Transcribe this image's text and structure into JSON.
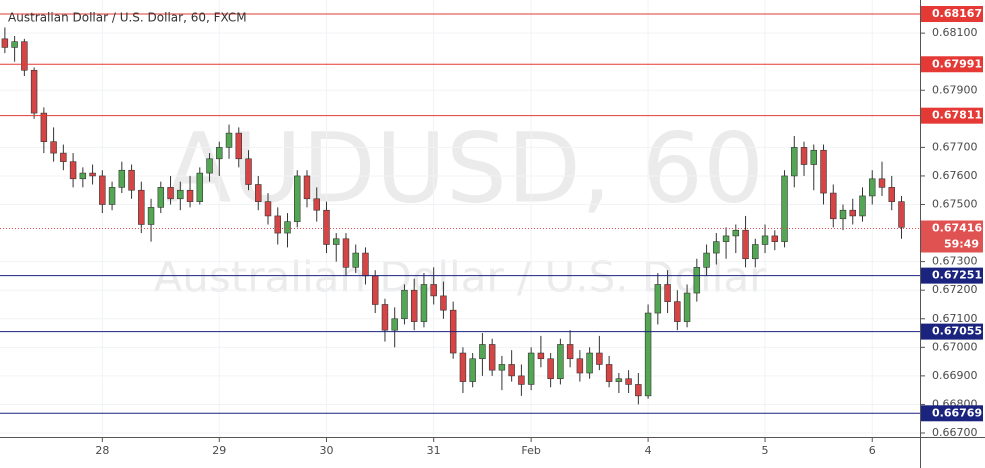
{
  "chart_data": {
    "type": "candlestick",
    "title": "Australian Dollar / U.S. Dollar, 60, FXCM",
    "watermark": {
      "symbol": "AUDUSD, 60",
      "description": "Australian Dollar / U.S. Dollar"
    },
    "up_color": "#53a653",
    "down_color": "#d64545",
    "grid": true,
    "ylim": [
      0.66686,
      0.68216
    ],
    "yticks": [
      {
        "value": 0.681,
        "label": "0.68100"
      },
      {
        "value": 0.679,
        "label": "0.67900"
      },
      {
        "value": 0.677,
        "label": "0.67700"
      },
      {
        "value": 0.676,
        "label": "0.67600"
      },
      {
        "value": 0.675,
        "label": "0.67500"
      },
      {
        "value": 0.673,
        "label": "0.67300"
      },
      {
        "value": 0.672,
        "label": "0.67200"
      },
      {
        "value": 0.671,
        "label": "0.67100"
      },
      {
        "value": 0.67,
        "label": "0.67000"
      },
      {
        "value": 0.669,
        "label": "0.66900"
      },
      {
        "value": 0.668,
        "label": "0.66800"
      },
      {
        "value": 0.667,
        "label": "0.66700"
      }
    ],
    "xlim": [
      -0.5,
      93.9
    ],
    "xticks": [
      {
        "value": 10,
        "label": "28"
      },
      {
        "value": 22,
        "label": "29"
      },
      {
        "value": 33,
        "label": "30"
      },
      {
        "value": 44,
        "label": "31"
      },
      {
        "value": 54,
        "label": "Feb"
      },
      {
        "value": 66,
        "label": "4"
      },
      {
        "value": 78,
        "label": "5"
      },
      {
        "value": 89,
        "label": "6"
      }
    ],
    "levels": [
      {
        "value": 0.68167,
        "color": "#e53935"
      },
      {
        "value": 0.67991,
        "color": "#e53935"
      },
      {
        "value": 0.67811,
        "color": "#e53935"
      },
      {
        "value": 0.67251,
        "color": "#1a237e"
      },
      {
        "value": 0.67055,
        "color": "#1a237e"
      },
      {
        "value": 0.66769,
        "color": "#1a237e"
      }
    ],
    "last_price": {
      "value": 0.67416,
      "countdown": "59:49",
      "color": "#e05252"
    },
    "candles": [
      [
        0.6808,
        0.6812,
        0.6803,
        0.6805
      ],
      [
        0.6805,
        0.6809,
        0.68,
        0.6807
      ],
      [
        0.6807,
        0.6808,
        0.6795,
        0.6797
      ],
      [
        0.6797,
        0.6798,
        0.678,
        0.6782
      ],
      [
        0.6782,
        0.6784,
        0.6768,
        0.6772
      ],
      [
        0.6772,
        0.6777,
        0.6765,
        0.6768
      ],
      [
        0.6768,
        0.6771,
        0.6762,
        0.6765
      ],
      [
        0.6765,
        0.6768,
        0.6756,
        0.6759
      ],
      [
        0.6759,
        0.6763,
        0.6756,
        0.6761
      ],
      [
        0.6761,
        0.6764,
        0.6757,
        0.676
      ],
      [
        0.676,
        0.6762,
        0.6747,
        0.675
      ],
      [
        0.675,
        0.6758,
        0.6748,
        0.6756
      ],
      [
        0.6756,
        0.6765,
        0.6754,
        0.6762
      ],
      [
        0.6762,
        0.6764,
        0.6752,
        0.6755
      ],
      [
        0.6755,
        0.6758,
        0.674,
        0.6743
      ],
      [
        0.6743,
        0.6752,
        0.6737,
        0.6749
      ],
      [
        0.6749,
        0.6758,
        0.6747,
        0.6756
      ],
      [
        0.6756,
        0.676,
        0.675,
        0.6752
      ],
      [
        0.6752,
        0.6758,
        0.6748,
        0.6755
      ],
      [
        0.6755,
        0.676,
        0.6749,
        0.6751
      ],
      [
        0.6751,
        0.6763,
        0.675,
        0.6761
      ],
      [
        0.6761,
        0.6768,
        0.6758,
        0.6766
      ],
      [
        0.6766,
        0.6772,
        0.676,
        0.677
      ],
      [
        0.677,
        0.6778,
        0.6766,
        0.6775
      ],
      [
        0.6775,
        0.6777,
        0.6763,
        0.6766
      ],
      [
        0.6766,
        0.6769,
        0.6755,
        0.6757
      ],
      [
        0.6757,
        0.676,
        0.6748,
        0.6751
      ],
      [
        0.6751,
        0.6754,
        0.6743,
        0.6746
      ],
      [
        0.6746,
        0.6749,
        0.6736,
        0.674
      ],
      [
        0.674,
        0.6747,
        0.6735,
        0.6744
      ],
      [
        0.6744,
        0.6762,
        0.6742,
        0.676
      ],
      [
        0.676,
        0.6762,
        0.6749,
        0.6752
      ],
      [
        0.6752,
        0.6756,
        0.6744,
        0.6748
      ],
      [
        0.6748,
        0.6751,
        0.6733,
        0.6736
      ],
      [
        0.6736,
        0.674,
        0.673,
        0.6738
      ],
      [
        0.6738,
        0.674,
        0.6725,
        0.6728
      ],
      [
        0.6728,
        0.6736,
        0.6726,
        0.6733
      ],
      [
        0.6733,
        0.6735,
        0.6722,
        0.6725
      ],
      [
        0.6725,
        0.6727,
        0.6712,
        0.6715
      ],
      [
        0.6715,
        0.6717,
        0.6702,
        0.6706
      ],
      [
        0.6706,
        0.6714,
        0.67,
        0.671
      ],
      [
        0.671,
        0.6722,
        0.6708,
        0.672
      ],
      [
        0.672,
        0.6724,
        0.6706,
        0.6709
      ],
      [
        0.6709,
        0.6726,
        0.6707,
        0.6722
      ],
      [
        0.6722,
        0.6728,
        0.6715,
        0.6718
      ],
      [
        0.6718,
        0.6723,
        0.671,
        0.6713
      ],
      [
        0.6713,
        0.6716,
        0.6696,
        0.6698
      ],
      [
        0.6698,
        0.67,
        0.6684,
        0.6688
      ],
      [
        0.6688,
        0.6698,
        0.6686,
        0.6696
      ],
      [
        0.6696,
        0.6705,
        0.669,
        0.6701
      ],
      [
        0.6701,
        0.6703,
        0.669,
        0.6692
      ],
      [
        0.6692,
        0.6697,
        0.6685,
        0.6694
      ],
      [
        0.6694,
        0.6699,
        0.6688,
        0.669
      ],
      [
        0.669,
        0.6694,
        0.6683,
        0.6687
      ],
      [
        0.6687,
        0.67,
        0.6685,
        0.6698
      ],
      [
        0.6698,
        0.6704,
        0.6693,
        0.6696
      ],
      [
        0.6696,
        0.6698,
        0.6686,
        0.6689
      ],
      [
        0.6689,
        0.6703,
        0.6687,
        0.6701
      ],
      [
        0.6701,
        0.6706,
        0.6693,
        0.6696
      ],
      [
        0.6696,
        0.6699,
        0.6688,
        0.6691
      ],
      [
        0.6691,
        0.67,
        0.6689,
        0.6698
      ],
      [
        0.6698,
        0.6704,
        0.6692,
        0.6694
      ],
      [
        0.6694,
        0.6697,
        0.6686,
        0.6688
      ],
      [
        0.6688,
        0.6691,
        0.6684,
        0.6689
      ],
      [
        0.6689,
        0.6692,
        0.6684,
        0.6687
      ],
      [
        0.6687,
        0.6691,
        0.668,
        0.6683
      ],
      [
        0.6683,
        0.6715,
        0.6682,
        0.6712
      ],
      [
        0.6712,
        0.6726,
        0.6708,
        0.6722
      ],
      [
        0.6722,
        0.6727,
        0.6712,
        0.6716
      ],
      [
        0.6716,
        0.672,
        0.6706,
        0.6709
      ],
      [
        0.6709,
        0.6722,
        0.6707,
        0.6719
      ],
      [
        0.6719,
        0.6731,
        0.6716,
        0.6728
      ],
      [
        0.6728,
        0.6736,
        0.6725,
        0.6733
      ],
      [
        0.6733,
        0.674,
        0.6729,
        0.6737
      ],
      [
        0.6737,
        0.6742,
        0.6731,
        0.6739
      ],
      [
        0.6739,
        0.6743,
        0.6733,
        0.6741
      ],
      [
        0.6741,
        0.6746,
        0.6728,
        0.6731
      ],
      [
        0.6731,
        0.6738,
        0.6728,
        0.6736
      ],
      [
        0.6736,
        0.6743,
        0.6733,
        0.6739
      ],
      [
        0.6739,
        0.6741,
        0.6734,
        0.6737
      ],
      [
        0.6737,
        0.6762,
        0.6735,
        0.676
      ],
      [
        0.676,
        0.6774,
        0.6756,
        0.677
      ],
      [
        0.677,
        0.6772,
        0.676,
        0.6764
      ],
      [
        0.6764,
        0.6771,
        0.6755,
        0.6769
      ],
      [
        0.6769,
        0.6771,
        0.675,
        0.6754
      ],
      [
        0.6754,
        0.6757,
        0.6742,
        0.6745
      ],
      [
        0.6745,
        0.675,
        0.6741,
        0.6748
      ],
      [
        0.6748,
        0.6752,
        0.6743,
        0.6746
      ],
      [
        0.6746,
        0.6756,
        0.6744,
        0.6753
      ],
      [
        0.6753,
        0.6762,
        0.675,
        0.6759
      ],
      [
        0.6759,
        0.6765,
        0.6753,
        0.6756
      ],
      [
        0.6756,
        0.676,
        0.6748,
        0.6751
      ],
      [
        0.6751,
        0.6753,
        0.6738,
        0.6742
      ]
    ]
  }
}
